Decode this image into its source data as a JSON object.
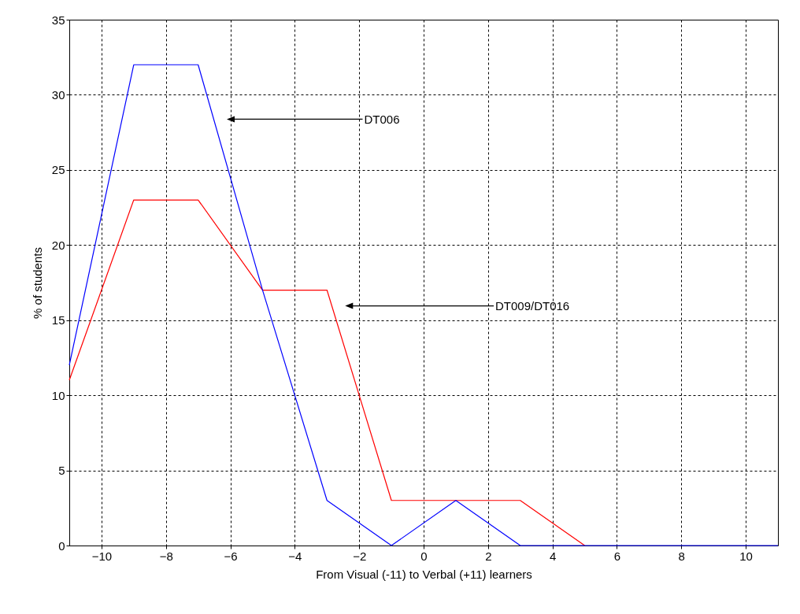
{
  "chart_data": {
    "type": "line",
    "xlabel": "From Visual (-11) to Verbal (+11) learners",
    "ylabel": "% of students",
    "x": [
      -11,
      -9,
      -7,
      -5,
      -3,
      -1,
      1,
      3,
      5,
      7,
      9,
      11
    ],
    "series": [
      {
        "color": "#ff0000",
        "values": [
          11,
          23,
          23,
          17,
          17,
          3,
          3,
          3,
          0,
          null,
          null,
          null
        ]
      },
      {
        "color": "#0000ff",
        "values": [
          12,
          32,
          32,
          17,
          3,
          0,
          3,
          0,
          0,
          0,
          0,
          0
        ]
      }
    ],
    "xlim": [
      -11,
      11
    ],
    "xticks": [
      -10,
      -8,
      -6,
      -4,
      -2,
      0,
      2,
      4,
      6,
      8,
      10
    ],
    "ylim": [
      0,
      35
    ],
    "yticks": [
      0,
      5,
      10,
      15,
      20,
      25,
      30,
      35
    ],
    "grid": true,
    "legend": false,
    "marker": "none",
    "line_style": "solid",
    "annotations": [
      "DT006",
      "DT009/DT016"
    ]
  }
}
